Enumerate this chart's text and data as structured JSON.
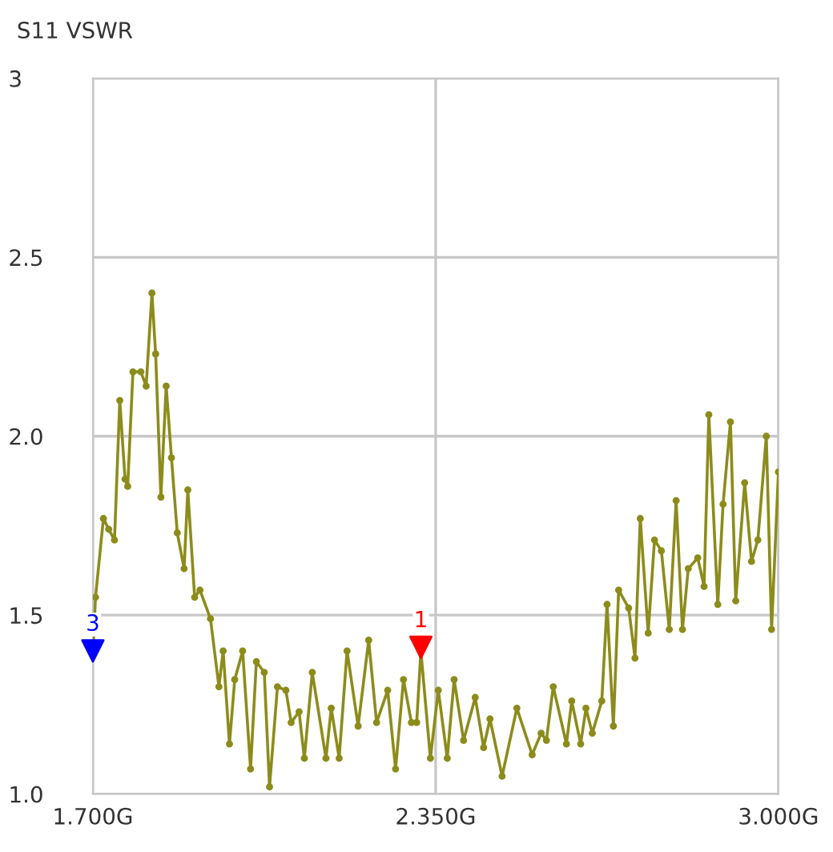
{
  "chart_data": {
    "type": "line",
    "title": "S11 VSWR",
    "xlim": [
      1.7,
      3.0
    ],
    "xticks": [
      {
        "value": 1.7,
        "label": "1.700G"
      },
      {
        "value": 2.35,
        "label": "2.350G"
      },
      {
        "value": 3.0,
        "label": "3.000G"
      }
    ],
    "ylim": [
      1.0,
      3.0
    ],
    "yticks": [
      {
        "value": 1.0,
        "label": "1.0"
      },
      {
        "value": 1.5,
        "label": "1.5"
      },
      {
        "value": 2.0,
        "label": "2.0"
      },
      {
        "value": 2.5,
        "label": "2.5"
      },
      3
    ],
    "grid": true,
    "marker": "circle",
    "line_style": "solid",
    "series": [
      {
        "color": "#8c8c1c",
        "x": [
          1.7,
          1.705,
          1.72,
          1.73,
          1.741,
          1.751,
          1.761,
          1.766,
          1.776,
          1.791,
          1.801,
          1.812,
          1.819,
          1.829,
          1.839,
          1.849,
          1.86,
          1.873,
          1.88,
          1.893,
          1.903,
          1.923,
          1.939,
          1.947,
          1.959,
          1.969,
          1.984,
          1.999,
          2.01,
          2.025,
          2.035,
          2.05,
          2.066,
          2.076,
          2.091,
          2.101,
          2.116,
          2.142,
          2.152,
          2.167,
          2.182,
          2.203,
          2.223,
          2.238,
          2.259,
          2.274,
          2.289,
          2.304,
          2.314,
          2.322,
          2.34,
          2.355,
          2.372,
          2.385,
          2.403,
          2.425,
          2.441,
          2.453,
          2.476,
          2.504,
          2.533,
          2.55,
          2.56,
          2.573,
          2.598,
          2.608,
          2.625,
          2.635,
          2.647,
          2.665,
          2.675,
          2.687,
          2.697,
          2.716,
          2.728,
          2.738,
          2.753,
          2.765,
          2.778,
          2.793,
          2.806,
          2.818,
          2.829,
          2.847,
          2.859,
          2.868,
          2.885,
          2.895,
          2.909,
          2.919,
          2.936,
          2.949,
          2.961,
          2.977,
          2.987,
          3.0
        ],
        "values": [
          1.39,
          1.55,
          1.77,
          1.74,
          1.71,
          2.1,
          1.88,
          1.86,
          2.18,
          2.18,
          2.14,
          2.4,
          2.23,
          1.83,
          2.14,
          1.94,
          1.73,
          1.63,
          1.85,
          1.55,
          1.57,
          1.49,
          1.3,
          1.4,
          1.14,
          1.32,
          1.4,
          1.07,
          1.37,
          1.34,
          1.02,
          1.3,
          1.29,
          1.2,
          1.23,
          1.1,
          1.34,
          1.1,
          1.24,
          1.1,
          1.4,
          1.19,
          1.43,
          1.2,
          1.29,
          1.07,
          1.32,
          1.2,
          1.2,
          1.4,
          1.1,
          1.29,
          1.1,
          1.32,
          1.15,
          1.27,
          1.13,
          1.21,
          1.05,
          1.24,
          1.11,
          1.17,
          1.15,
          1.3,
          1.14,
          1.26,
          1.14,
          1.24,
          1.17,
          1.26,
          1.53,
          1.19,
          1.57,
          1.52,
          1.38,
          1.77,
          1.45,
          1.71,
          1.68,
          1.46,
          1.82,
          1.46,
          1.63,
          1.66,
          1.58,
          2.06,
          1.53,
          1.81,
          2.04,
          1.54,
          1.87,
          1.65,
          1.71,
          2.0,
          1.46,
          1.9
        ]
      },
      {
        "type": "scatter",
        "name": "3",
        "color": "#0000ff",
        "marker": "triangle",
        "x": [
          1.7
        ],
        "values": [
          1.4
        ]
      },
      {
        "type": "scatter",
        "name": "1",
        "color": "#ff0000",
        "marker": "triangle",
        "x": [
          2.322
        ],
        "values": [
          1.41
        ]
      }
    ]
  }
}
